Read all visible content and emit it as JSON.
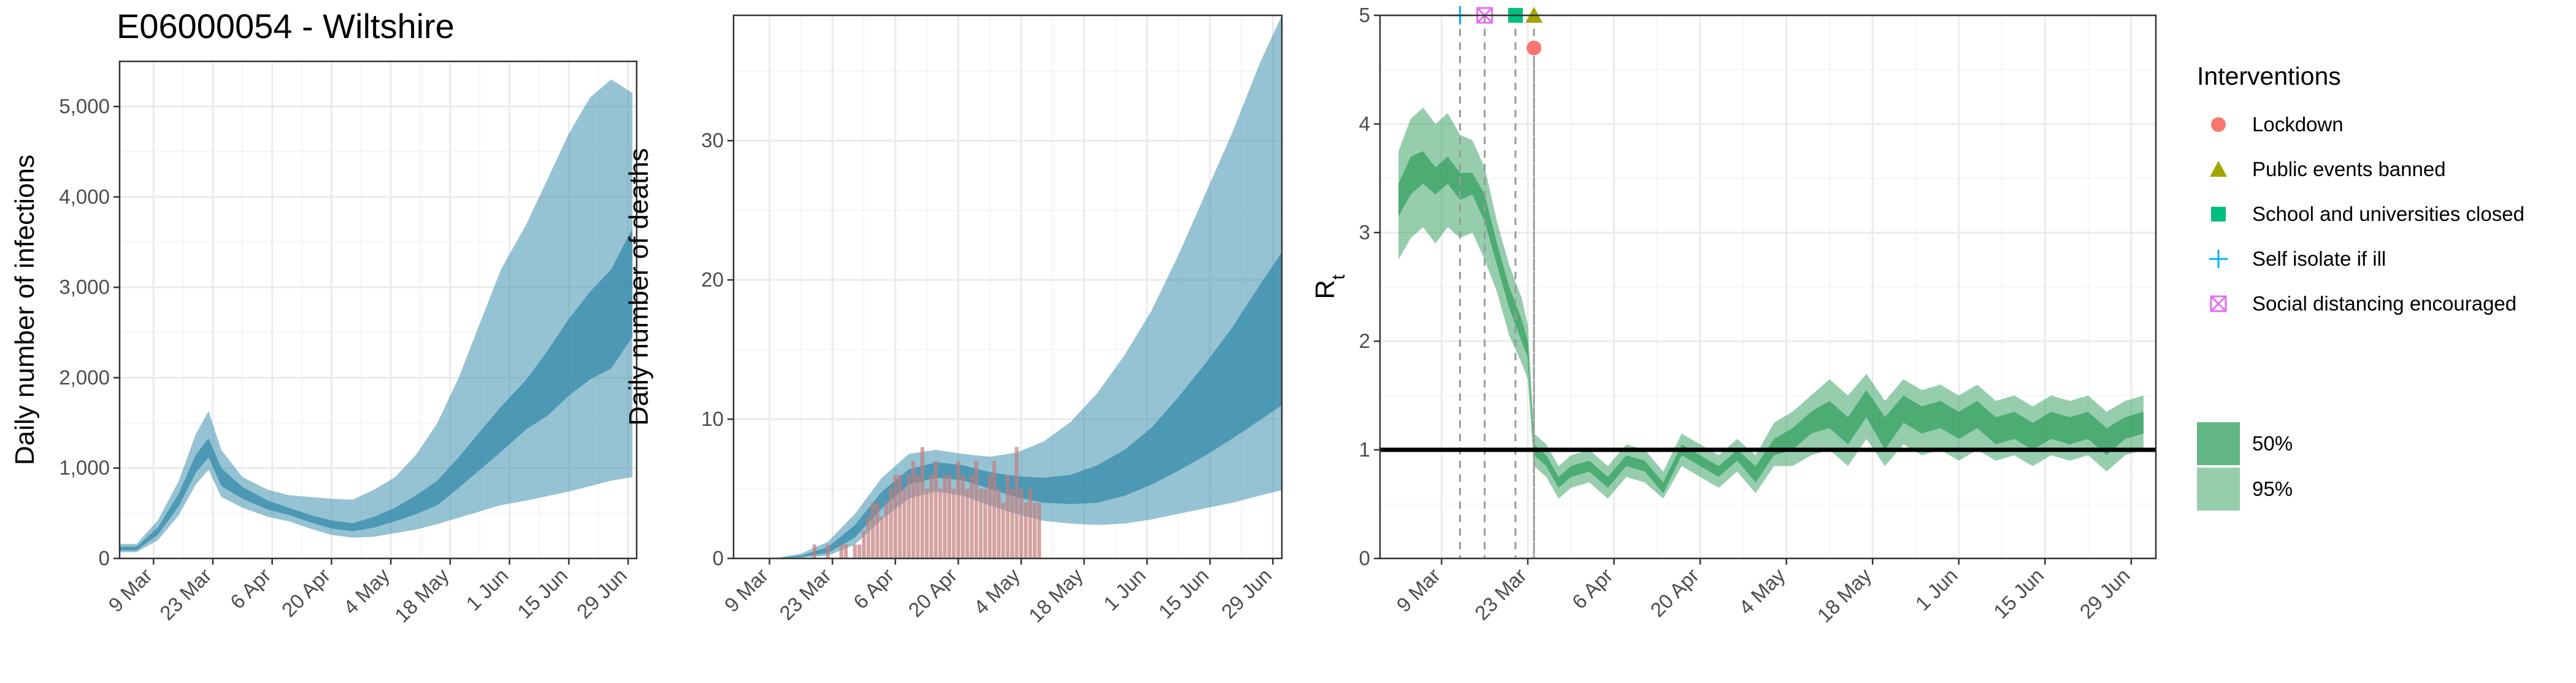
{
  "title": "E06000054 - Wiltshire",
  "colors": {
    "infection_band": "#2d87a8",
    "deaths_band": "#2d87a8",
    "rt_band": "#2e9e5b",
    "observed_deaths": "#c27c7c",
    "lockdown": "#f8766d",
    "public_events": "#a3a500",
    "schools": "#00bf7d",
    "self_isolate": "#00b0f6",
    "social_distancing": "#e76bf3"
  },
  "chart_data": [
    {
      "type": "area",
      "ylabel": "Daily number of infections",
      "xlabel": "",
      "x_ticks": [
        "9 Mar",
        "23 Mar",
        "6 Apr",
        "20 Apr",
        "4 May",
        "18 May",
        "1 Jun",
        "15 Jun",
        "29 Jun"
      ],
      "y_ticks": [
        "0",
        "1,000",
        "2,000",
        "3,000",
        "4,000",
        "5,000"
      ],
      "ylim": [
        0,
        5500
      ],
      "x_start": "2020-03-01",
      "x_end": "2020-07-01",
      "grid": true,
      "dates": [
        "2020-03-01",
        "2020-03-05",
        "2020-03-10",
        "2020-03-15",
        "2020-03-19",
        "2020-03-22",
        "2020-03-25",
        "2020-03-30",
        "2020-04-05",
        "2020-04-10",
        "2020-04-15",
        "2020-04-20",
        "2020-04-25",
        "2020-04-30",
        "2020-05-05",
        "2020-05-10",
        "2020-05-15",
        "2020-05-20",
        "2020-05-25",
        "2020-05-30",
        "2020-06-05",
        "2020-06-10",
        "2020-06-15",
        "2020-06-20",
        "2020-06-25",
        "2020-06-30"
      ],
      "series": [
        {
          "name": "50%",
          "lower": [
            90,
            90,
            260,
            580,
            950,
            1120,
            800,
            660,
            540,
            480,
            400,
            330,
            300,
            340,
            410,
            490,
            590,
            780,
            980,
            1180,
            1430,
            1580,
            1800,
            1980,
            2100,
            2450
          ],
          "upper": [
            130,
            130,
            340,
            720,
            1150,
            1330,
            1000,
            790,
            640,
            560,
            480,
            420,
            390,
            460,
            560,
            700,
            860,
            1120,
            1400,
            1680,
            1980,
            2300,
            2650,
            2950,
            3200,
            3650
          ]
        },
        {
          "name": "95%",
          "lower": [
            70,
            70,
            200,
            480,
            820,
            980,
            680,
            560,
            460,
            410,
            330,
            260,
            230,
            240,
            280,
            320,
            380,
            450,
            520,
            590,
            640,
            690,
            740,
            800,
            860,
            900
          ],
          "upper": [
            160,
            160,
            420,
            860,
            1380,
            1630,
            1200,
            900,
            760,
            700,
            680,
            660,
            650,
            760,
            900,
            1150,
            1500,
            2000,
            2600,
            3200,
            3700,
            4200,
            4700,
            5100,
            5300,
            5150
          ]
        }
      ]
    },
    {
      "type": "area",
      "ylabel": "Daily number of deaths",
      "xlabel": "",
      "x_ticks": [
        "9 Mar",
        "23 Mar",
        "6 Apr",
        "20 Apr",
        "4 May",
        "18 May",
        "1 Jun",
        "15 Jun",
        "29 Jun"
      ],
      "y_ticks": [
        "0",
        "10",
        "20",
        "30"
      ],
      "ylim": [
        0,
        39
      ],
      "x_start": "2020-03-01",
      "x_end": "2020-07-01",
      "grid": true,
      "dates": [
        "2020-03-01",
        "2020-03-10",
        "2020-03-16",
        "2020-03-22",
        "2020-03-28",
        "2020-04-03",
        "2020-04-09",
        "2020-04-15",
        "2020-04-21",
        "2020-04-27",
        "2020-05-03",
        "2020-05-09",
        "2020-05-15",
        "2020-05-21",
        "2020-05-27",
        "2020-06-02",
        "2020-06-08",
        "2020-06-14",
        "2020-06-20",
        "2020-06-26",
        "2020-07-01"
      ],
      "series": [
        {
          "name": "50%",
          "lower": [
            0,
            0,
            0.1,
            0.4,
            1.5,
            3.6,
            5.3,
            5.8,
            5.6,
            5.0,
            4.4,
            4.0,
            3.9,
            4.0,
            4.5,
            5.3,
            6.3,
            7.4,
            8.6,
            9.9,
            11.0
          ],
          "upper": [
            0,
            0,
            0.2,
            0.8,
            2.4,
            4.8,
            6.4,
            6.9,
            6.7,
            6.2,
            5.9,
            5.8,
            6.0,
            6.7,
            7.8,
            9.4,
            11.6,
            14.0,
            16.6,
            19.6,
            22.0
          ]
        },
        {
          "name": "95%",
          "lower": [
            0,
            0,
            0.05,
            0.2,
            1.0,
            2.8,
            4.3,
            4.8,
            4.5,
            3.8,
            3.2,
            2.7,
            2.5,
            2.4,
            2.5,
            2.8,
            3.2,
            3.6,
            4.0,
            4.5,
            4.9
          ],
          "upper": [
            0,
            0,
            0.35,
            1.2,
            3.2,
            5.8,
            7.5,
            7.8,
            7.5,
            7.3,
            7.6,
            8.4,
            9.8,
            11.9,
            14.6,
            17.8,
            21.8,
            26.2,
            30.6,
            35.5,
            39.0
          ]
        }
      ],
      "observed_deaths": {
        "dates": [
          "2020-03-19",
          "2020-03-22",
          "2020-03-25",
          "2020-03-26",
          "2020-03-28",
          "2020-03-29",
          "2020-03-30",
          "2020-03-31",
          "2020-04-01",
          "2020-04-02",
          "2020-04-03",
          "2020-04-04",
          "2020-04-05",
          "2020-04-06",
          "2020-04-07",
          "2020-04-08",
          "2020-04-09",
          "2020-04-10",
          "2020-04-11",
          "2020-04-12",
          "2020-04-13",
          "2020-04-14",
          "2020-04-15",
          "2020-04-16",
          "2020-04-17",
          "2020-04-18",
          "2020-04-19",
          "2020-04-20",
          "2020-04-21",
          "2020-04-22",
          "2020-04-23",
          "2020-04-24",
          "2020-04-25",
          "2020-04-26",
          "2020-04-27",
          "2020-04-28",
          "2020-04-29",
          "2020-04-30",
          "2020-05-01",
          "2020-05-02",
          "2020-05-03",
          "2020-05-04",
          "2020-05-05",
          "2020-05-06",
          "2020-05-07",
          "2020-05-08"
        ],
        "values": [
          1,
          1,
          1,
          1,
          1,
          1,
          2,
          3,
          4,
          4,
          3,
          4,
          5,
          6,
          6,
          5,
          6,
          7,
          6,
          8,
          5,
          6,
          7,
          5,
          6,
          6,
          5,
          7,
          6,
          5,
          6,
          7,
          5,
          5,
          6,
          7,
          5,
          4,
          6,
          5,
          8,
          5,
          4,
          5,
          4,
          4
        ]
      }
    },
    {
      "type": "area",
      "ylabel": "R",
      "ylabel_sub": "t",
      "xlabel": "",
      "x_ticks": [
        "9 Mar",
        "23 Mar",
        "6 Apr",
        "20 Apr",
        "4 May",
        "18 May",
        "1 Jun",
        "15 Jun",
        "29 Jun"
      ],
      "y_ticks": [
        "0",
        "1",
        "2",
        "3",
        "4",
        "5"
      ],
      "ylim": [
        0,
        5
      ],
      "x_start": "2020-02-28",
      "x_end": "2020-07-03",
      "grid": true,
      "reference_line": 1,
      "dates": [
        "2020-03-02",
        "2020-03-04",
        "2020-03-06",
        "2020-03-08",
        "2020-03-10",
        "2020-03-12",
        "2020-03-14",
        "2020-03-16",
        "2020-03-18",
        "2020-03-20",
        "2020-03-22",
        "2020-03-23",
        "2020-03-24",
        "2020-03-26",
        "2020-03-28",
        "2020-03-30",
        "2020-04-02",
        "2020-04-05",
        "2020-04-08",
        "2020-04-11",
        "2020-04-14",
        "2020-04-17",
        "2020-04-20",
        "2020-04-23",
        "2020-04-26",
        "2020-04-29",
        "2020-05-02",
        "2020-05-05",
        "2020-05-08",
        "2020-05-11",
        "2020-05-14",
        "2020-05-17",
        "2020-05-20",
        "2020-05-23",
        "2020-05-26",
        "2020-05-29",
        "2020-06-01",
        "2020-06-04",
        "2020-06-07",
        "2020-06-10",
        "2020-06-13",
        "2020-06-16",
        "2020-06-19",
        "2020-06-22",
        "2020-06-25",
        "2020-06-28",
        "2020-07-01"
      ],
      "series": [
        {
          "name": "50%",
          "lower": [
            3.15,
            3.35,
            3.45,
            3.35,
            3.45,
            3.3,
            3.35,
            3.1,
            2.7,
            2.3,
            2.0,
            1.85,
            0.95,
            0.85,
            0.65,
            0.75,
            0.8,
            0.65,
            0.85,
            0.8,
            0.6,
            0.95,
            0.85,
            0.75,
            0.9,
            0.7,
            0.95,
            1.0,
            1.15,
            1.2,
            1.05,
            1.3,
            1.0,
            1.25,
            1.15,
            1.2,
            1.1,
            1.2,
            1.05,
            1.1,
            1.0,
            1.1,
            1.05,
            1.1,
            0.95,
            1.1,
            1.15
          ],
          "upper": [
            3.45,
            3.7,
            3.75,
            3.6,
            3.7,
            3.55,
            3.55,
            3.35,
            2.9,
            2.5,
            2.2,
            2.0,
            1.05,
            0.95,
            0.75,
            0.85,
            0.9,
            0.75,
            0.95,
            0.9,
            0.7,
            1.05,
            0.95,
            0.85,
            1.0,
            0.85,
            1.1,
            1.2,
            1.35,
            1.45,
            1.3,
            1.55,
            1.3,
            1.5,
            1.4,
            1.45,
            1.35,
            1.45,
            1.3,
            1.35,
            1.25,
            1.35,
            1.3,
            1.35,
            1.2,
            1.3,
            1.35
          ]
        },
        {
          "name": "95%",
          "lower": [
            2.75,
            2.95,
            3.05,
            2.9,
            3.05,
            2.95,
            3.0,
            2.75,
            2.45,
            2.05,
            1.8,
            1.65,
            0.85,
            0.75,
            0.55,
            0.65,
            0.7,
            0.55,
            0.75,
            0.7,
            0.55,
            0.85,
            0.75,
            0.65,
            0.8,
            0.6,
            0.85,
            0.85,
            0.95,
            1.0,
            0.85,
            1.1,
            0.85,
            1.05,
            0.95,
            1.0,
            0.9,
            1.0,
            0.9,
            0.95,
            0.85,
            0.95,
            0.9,
            0.95,
            0.8,
            0.95,
            1.0
          ],
          "upper": [
            3.75,
            4.05,
            4.15,
            4.0,
            4.1,
            3.9,
            3.85,
            3.6,
            3.1,
            2.7,
            2.4,
            2.15,
            1.15,
            1.05,
            0.85,
            0.95,
            1.0,
            0.85,
            1.05,
            1.0,
            0.8,
            1.15,
            1.05,
            0.95,
            1.1,
            0.95,
            1.25,
            1.35,
            1.5,
            1.65,
            1.5,
            1.7,
            1.45,
            1.65,
            1.55,
            1.6,
            1.5,
            1.6,
            1.45,
            1.5,
            1.4,
            1.5,
            1.45,
            1.5,
            1.35,
            1.45,
            1.5
          ]
        }
      ],
      "interventions": [
        {
          "name": "Self isolate if ill",
          "date": "2020-03-12",
          "y": 5.0,
          "shape": "plus"
        },
        {
          "name": "Social distancing encouraged",
          "date": "2020-03-16",
          "y": 5.0,
          "shape": "boxcross"
        },
        {
          "name": "School and universities closed",
          "date": "2020-03-21",
          "y": 5.0,
          "shape": "square"
        },
        {
          "name": "Public events banned",
          "date": "2020-03-24",
          "y": 5.0,
          "shape": "triangle"
        },
        {
          "name": "Lockdown",
          "date": "2020-03-24",
          "y": 4.7,
          "shape": "circle"
        }
      ]
    }
  ],
  "legend": {
    "title": "Interventions",
    "items": [
      {
        "label": "Lockdown",
        "shape": "circle",
        "color_key": "lockdown"
      },
      {
        "label": "Public events banned",
        "shape": "triangle",
        "color_key": "public_events"
      },
      {
        "label": "School and universities closed",
        "shape": "square",
        "color_key": "schools"
      },
      {
        "label": "Self isolate if ill",
        "shape": "plus",
        "color_key": "self_isolate"
      },
      {
        "label": "Social distancing encouraged",
        "shape": "boxcross",
        "color_key": "social_distancing"
      }
    ],
    "bands": [
      {
        "label": "50%",
        "alpha": 0.75
      },
      {
        "label": "95%",
        "alpha": 0.5
      }
    ]
  }
}
